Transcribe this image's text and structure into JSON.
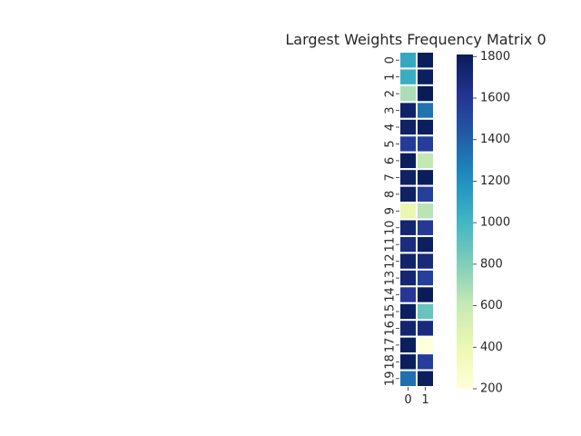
{
  "chart_data": {
    "type": "heatmap",
    "title": "Largest Weights Frequency Matrix 0",
    "xlabel": "",
    "ylabel": "",
    "x_categories": [
      "0",
      "1"
    ],
    "y_categories": [
      "0",
      "1",
      "2",
      "3",
      "4",
      "5",
      "6",
      "7",
      "8",
      "9",
      "10",
      "11",
      "12",
      "13",
      "14",
      "15",
      "16",
      "17",
      "18",
      "19"
    ],
    "values": [
      [
        1080,
        1800
      ],
      [
        1050,
        1780
      ],
      [
        680,
        1810
      ],
      [
        1760,
        1330
      ],
      [
        1770,
        1790
      ],
      [
        1570,
        1560
      ],
      [
        1790,
        610
      ],
      [
        1770,
        1800
      ],
      [
        1770,
        1550
      ],
      [
        420,
        640
      ],
      [
        1730,
        1590
      ],
      [
        1680,
        1780
      ],
      [
        1750,
        1700
      ],
      [
        1720,
        1550
      ],
      [
        1600,
        1810
      ],
      [
        1780,
        880
      ],
      [
        1740,
        1690
      ],
      [
        1790,
        200
      ],
      [
        1790,
        1560
      ],
      [
        1340,
        1790
      ]
    ],
    "colorbar": {
      "min": 200,
      "max": 1810,
      "ticks": [
        200,
        400,
        600,
        800,
        1000,
        1200,
        1400,
        1600,
        1800
      ],
      "colormap": "YlGnBu"
    },
    "cell_border_color": "#ffffff",
    "grid": false
  }
}
